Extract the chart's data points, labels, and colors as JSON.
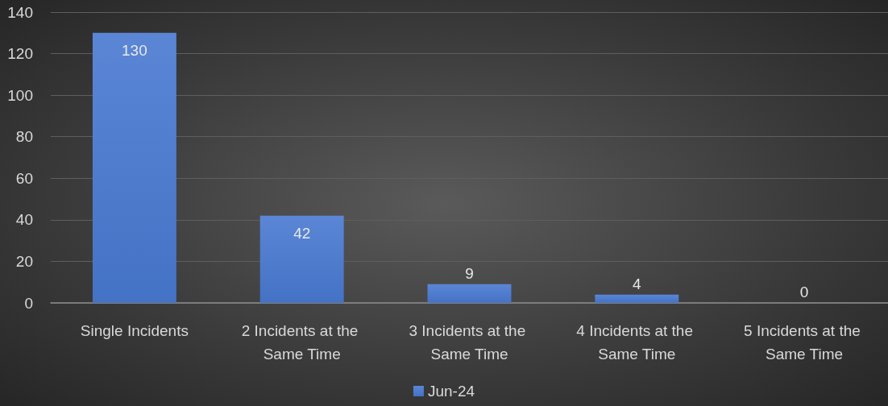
{
  "chart_data": {
    "type": "bar",
    "categories": [
      "Single Incidents",
      "2 Incidents at the Same Time",
      "3 Incidents at the Same Time",
      "4 Incidents at the Same Time",
      "5 Incidents at the Same Time"
    ],
    "series": [
      {
        "name": "Jun-24",
        "color": "#4472c4",
        "values": [
          130,
          42,
          9,
          4,
          0
        ]
      }
    ],
    "ylim": [
      0,
      140
    ],
    "yticks": [
      0,
      20,
      40,
      60,
      80,
      100,
      120,
      140
    ],
    "grid": "y",
    "legend": "bottom",
    "data_labels": true
  }
}
